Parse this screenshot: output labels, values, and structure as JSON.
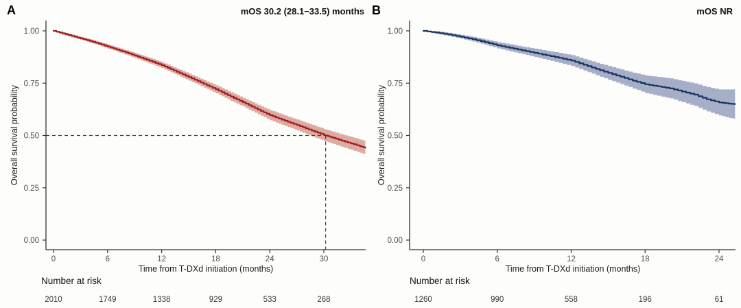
{
  "figure": {
    "background": "#fdfdfc",
    "axis_color": "#333333",
    "tick_label_color": "#4d4d4d",
    "risk_number_color": "#3a3a3a",
    "dashed_line_color": "#3f3f3f"
  },
  "chart_data": [
    {
      "type": "line",
      "subtype": "kaplan-meier",
      "panel_label": "A",
      "subtitle": "mOS 30.2 (28.1−33.5) months",
      "xlabel": "Time from T-DXd initiation (months)",
      "ylabel": "Overall survival probability",
      "x_ticks": [
        0,
        6,
        12,
        18,
        24,
        30
      ],
      "y_ticks": [
        "1.00",
        "0.75",
        "0.50",
        "0.25",
        "0.00"
      ],
      "y_tick_values": [
        1.0,
        0.75,
        0.5,
        0.25,
        0.0
      ],
      "xlim": [
        -0.85,
        34.6
      ],
      "ylim": [
        0,
        1
      ],
      "grid": false,
      "legend": "none",
      "line_color": "#A01E23",
      "band_color": "#DCABA1",
      "median": {
        "time": 30.2,
        "survival": 0.5,
        "show_lines": true
      },
      "number_at_risk_label": "Number at risk",
      "risk_times": [
        0,
        6,
        12,
        18,
        24,
        30
      ],
      "risk_counts": [
        "2010",
        "1749",
        "1338",
        "929",
        "533",
        "268"
      ],
      "points": [
        [
          0,
          1.0,
          0.995,
          1.0
        ],
        [
          1,
          0.988,
          0.982,
          0.994
        ],
        [
          2,
          0.976,
          0.969,
          0.983
        ],
        [
          3,
          0.964,
          0.957,
          0.971
        ],
        [
          4,
          0.952,
          0.944,
          0.96
        ],
        [
          5,
          0.939,
          0.93,
          0.948
        ],
        [
          6,
          0.925,
          0.915,
          0.935
        ],
        [
          7,
          0.911,
          0.901,
          0.921
        ],
        [
          8,
          0.897,
          0.886,
          0.908
        ],
        [
          9,
          0.882,
          0.87,
          0.894
        ],
        [
          10,
          0.867,
          0.854,
          0.88
        ],
        [
          11,
          0.852,
          0.838,
          0.866
        ],
        [
          12,
          0.836,
          0.822,
          0.85
        ],
        [
          13,
          0.817,
          0.802,
          0.832
        ],
        [
          14,
          0.798,
          0.782,
          0.814
        ],
        [
          15,
          0.779,
          0.762,
          0.796
        ],
        [
          16,
          0.76,
          0.743,
          0.777
        ],
        [
          17,
          0.74,
          0.722,
          0.758
        ],
        [
          18,
          0.721,
          0.702,
          0.74
        ],
        [
          19,
          0.7,
          0.68,
          0.72
        ],
        [
          20,
          0.679,
          0.658,
          0.7
        ],
        [
          21,
          0.659,
          0.638,
          0.68
        ],
        [
          22,
          0.638,
          0.616,
          0.66
        ],
        [
          23,
          0.617,
          0.594,
          0.64
        ],
        [
          24,
          0.597,
          0.573,
          0.621
        ],
        [
          25,
          0.581,
          0.556,
          0.606
        ],
        [
          26,
          0.565,
          0.54,
          0.59
        ],
        [
          27,
          0.55,
          0.524,
          0.576
        ],
        [
          28,
          0.534,
          0.507,
          0.561
        ],
        [
          29,
          0.518,
          0.49,
          0.546
        ],
        [
          30,
          0.503,
          0.475,
          0.531
        ],
        [
          30.2,
          0.5,
          0.471,
          0.529
        ],
        [
          31,
          0.489,
          0.46,
          0.518
        ],
        [
          32,
          0.475,
          0.445,
          0.505
        ],
        [
          33,
          0.462,
          0.431,
          0.493
        ],
        [
          34,
          0.449,
          0.417,
          0.481
        ],
        [
          34.6,
          0.441,
          0.409,
          0.473
        ]
      ]
    },
    {
      "type": "line",
      "subtype": "kaplan-meier",
      "panel_label": "B",
      "subtitle": "mOS NR",
      "xlabel": "Time from T-DXd initiation (months)",
      "ylabel": "Overall survival probability",
      "x_ticks": [
        0,
        6,
        12,
        18,
        24
      ],
      "y_ticks": [
        "1.00",
        "0.75",
        "0.50",
        "0.25",
        "0.00"
      ],
      "y_tick_values": [
        1.0,
        0.75,
        0.5,
        0.25,
        0.0
      ],
      "xlim": [
        -1.1,
        25.3
      ],
      "ylim": [
        0,
        1
      ],
      "grid": false,
      "legend": "none",
      "line_color": "#17335F",
      "band_color": "#A7AFC8",
      "median": {
        "time": null,
        "survival": null,
        "show_lines": false
      },
      "number_at_risk_label": "Number at risk",
      "risk_times": [
        0,
        6,
        12,
        18,
        24
      ],
      "risk_counts": [
        "1260",
        "990",
        "558",
        "196",
        "61"
      ],
      "points": [
        [
          0,
          1.0,
          0.996,
          1.0
        ],
        [
          1,
          0.992,
          0.986,
          0.998
        ],
        [
          2,
          0.983,
          0.975,
          0.991
        ],
        [
          3,
          0.972,
          0.963,
          0.981
        ],
        [
          4,
          0.96,
          0.949,
          0.971
        ],
        [
          5,
          0.946,
          0.933,
          0.959
        ],
        [
          6,
          0.931,
          0.916,
          0.946
        ],
        [
          7,
          0.919,
          0.902,
          0.936
        ],
        [
          8,
          0.907,
          0.889,
          0.925
        ],
        [
          9,
          0.895,
          0.875,
          0.915
        ],
        [
          10,
          0.883,
          0.861,
          0.905
        ],
        [
          11,
          0.871,
          0.847,
          0.895
        ],
        [
          12,
          0.858,
          0.832,
          0.884
        ],
        [
          13,
          0.838,
          0.81,
          0.866
        ],
        [
          14,
          0.818,
          0.788,
          0.848
        ],
        [
          15,
          0.799,
          0.766,
          0.832
        ],
        [
          16,
          0.781,
          0.746,
          0.816
        ],
        [
          17,
          0.762,
          0.724,
          0.8
        ],
        [
          18,
          0.745,
          0.703,
          0.787
        ],
        [
          19,
          0.735,
          0.69,
          0.78
        ],
        [
          20,
          0.725,
          0.677,
          0.773
        ],
        [
          21,
          0.71,
          0.659,
          0.761
        ],
        [
          22,
          0.695,
          0.641,
          0.749
        ],
        [
          23,
          0.673,
          0.615,
          0.731
        ],
        [
          24,
          0.658,
          0.596,
          0.72
        ],
        [
          24.8,
          0.652,
          0.584,
          0.72
        ],
        [
          25.3,
          0.65,
          0.58,
          0.72
        ]
      ]
    }
  ]
}
